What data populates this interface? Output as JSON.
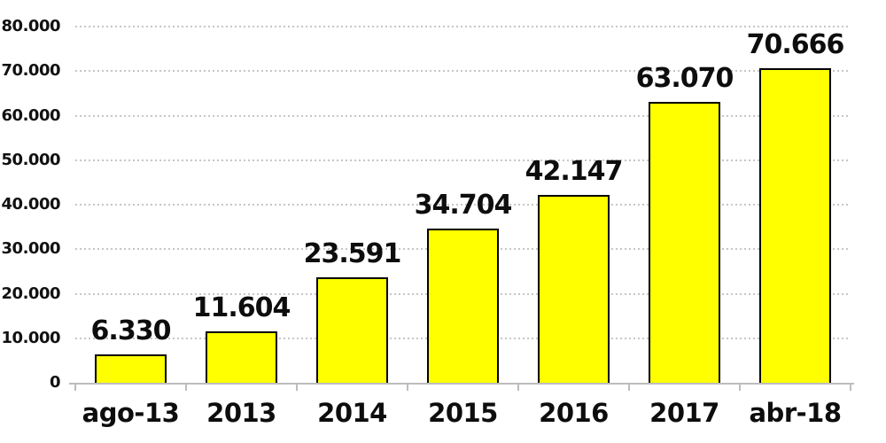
{
  "chart_data": {
    "type": "bar",
    "title": "",
    "xlabel": "",
    "ylabel": "",
    "categories": [
      "ago-13",
      "2013",
      "2014",
      "2015",
      "2016",
      "2017",
      "abr-18"
    ],
    "values": [
      6330,
      11604,
      23591,
      34704,
      42147,
      63070,
      70666
    ],
    "value_labels": [
      "6.330",
      "11.604",
      "23.591",
      "34.704",
      "42.147",
      "63.070",
      "70.666"
    ],
    "y_axis": {
      "min": 0,
      "max": 80000,
      "ticks": [
        {
          "value": 80000,
          "label": "80.000"
        },
        {
          "value": 70000,
          "label": "70.000"
        },
        {
          "value": 60000,
          "label": "60.000"
        },
        {
          "value": 50000,
          "label": "50.000"
        },
        {
          "value": 40000,
          "label": "40.000"
        },
        {
          "value": 30000,
          "label": "30.000"
        },
        {
          "value": 20000,
          "label": "20.000"
        },
        {
          "value": 10000,
          "label": "10.000"
        },
        {
          "value": 0,
          "label": "0"
        }
      ]
    },
    "legend": null,
    "grid": "horizontal-dotted",
    "colors": {
      "bar_fill": "#ffff00",
      "bar_border": "#000000",
      "gridline": "#c6c6c6",
      "axis": "#bdbdbd",
      "text": "#0d0d0d",
      "background": "#ffffff"
    }
  }
}
